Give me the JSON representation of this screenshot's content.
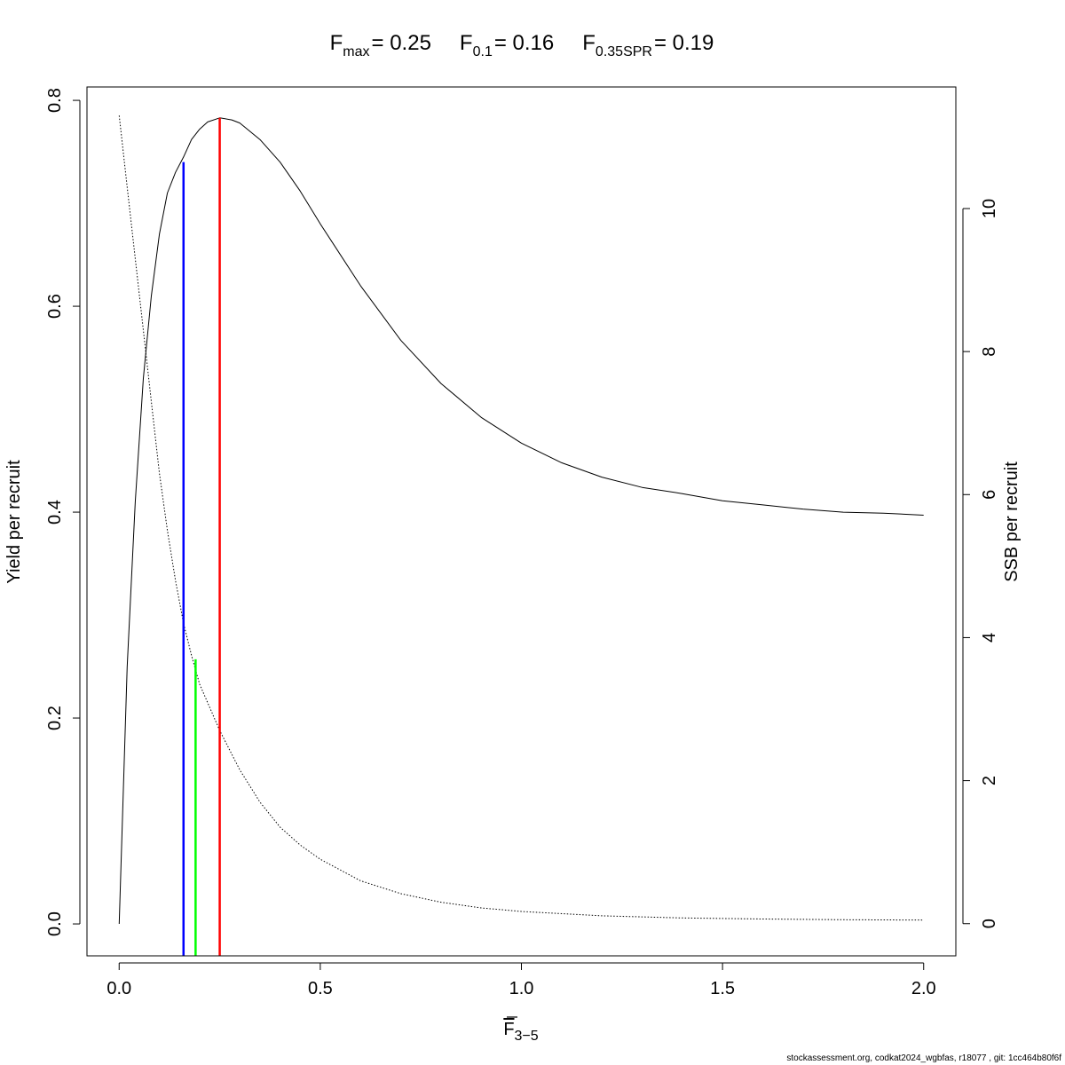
{
  "chart_data": {
    "type": "line",
    "title_parts": [
      {
        "base": "F",
        "sub": "max",
        "value": "= 0.25"
      },
      {
        "base": "F",
        "sub": "0.1",
        "value": "= 0.16"
      },
      {
        "base": "F",
        "sub": "0.35SPR",
        "value": "= 0.19"
      }
    ],
    "xlabel": {
      "base": "F",
      "sub": "3−5"
    },
    "ylabel_left": "Yield per recruit",
    "ylabel_right": "SSB per recruit",
    "xlim": [
      -0.08,
      2.08
    ],
    "ylim_left": [
      -0.031,
      0.813
    ],
    "ylim_right": [
      -0.45,
      11.7
    ],
    "x_ticks": [
      0,
      0.5,
      1,
      1.5,
      2
    ],
    "x_tick_labels": [
      "0.0",
      "0.5",
      "1.0",
      "1.5",
      "2.0"
    ],
    "y_left_ticks": [
      0,
      0.2,
      0.4,
      0.6,
      0.8
    ],
    "y_left_tick_labels": [
      "0.0",
      "0.2",
      "0.4",
      "0.6",
      "0.8"
    ],
    "y_right_ticks": [
      0,
      2,
      4,
      6,
      8,
      10
    ],
    "y_right_tick_labels": [
      "0",
      "2",
      "4",
      "6",
      "8",
      "10"
    ],
    "series": [
      {
        "name": "Yield per recruit",
        "axis": "left",
        "style": "solid",
        "color": "#000000",
        "x": [
          0,
          0.02,
          0.04,
          0.06,
          0.08,
          0.1,
          0.12,
          0.14,
          0.16,
          0.18,
          0.2,
          0.22,
          0.25,
          0.28,
          0.3,
          0.35,
          0.4,
          0.45,
          0.5,
          0.6,
          0.7,
          0.8,
          0.9,
          1.0,
          1.1,
          1.2,
          1.3,
          1.4,
          1.5,
          1.6,
          1.7,
          1.8,
          1.9,
          2.0
        ],
        "y": [
          0,
          0.25,
          0.41,
          0.53,
          0.61,
          0.67,
          0.71,
          0.73,
          0.745,
          0.762,
          0.772,
          0.779,
          0.783,
          0.781,
          0.778,
          0.762,
          0.74,
          0.712,
          0.68,
          0.62,
          0.567,
          0.525,
          0.492,
          0.467,
          0.448,
          0.434,
          0.424,
          0.418,
          0.411,
          0.407,
          0.403,
          0.4,
          0.399,
          0.397
        ]
      },
      {
        "name": "SSB per recruit",
        "axis": "right",
        "style": "dotted",
        "color": "#000000",
        "x": [
          0,
          0.02,
          0.04,
          0.06,
          0.08,
          0.1,
          0.12,
          0.14,
          0.16,
          0.18,
          0.2,
          0.25,
          0.3,
          0.35,
          0.4,
          0.45,
          0.5,
          0.6,
          0.7,
          0.8,
          0.9,
          1.0,
          1.2,
          1.4,
          1.6,
          1.8,
          2.0
        ],
        "y": [
          11.3,
          10.3,
          9.3,
          8.3,
          7.3,
          6.3,
          5.5,
          4.8,
          4.2,
          3.75,
          3.35,
          2.7,
          2.15,
          1.7,
          1.35,
          1.1,
          0.9,
          0.6,
          0.42,
          0.3,
          0.22,
          0.17,
          0.11,
          0.08,
          0.065,
          0.055,
          0.05
        ]
      }
    ],
    "reference_lines": [
      {
        "name": "F0.1",
        "x": 0.16,
        "y_top": 0.74,
        "color": "#0000ff"
      },
      {
        "name": "F0.35SPR",
        "x": 0.19,
        "y_top": 0.257,
        "color": "#00ff00"
      },
      {
        "name": "Fmax",
        "x": 0.25,
        "y_top": 0.783,
        "color": "#ff0000"
      }
    ],
    "grid": false,
    "legend": "none"
  },
  "footer": "stockassessment.org, codkat2024_wgbfas, r18077 , git: 1cc464b80f6f"
}
